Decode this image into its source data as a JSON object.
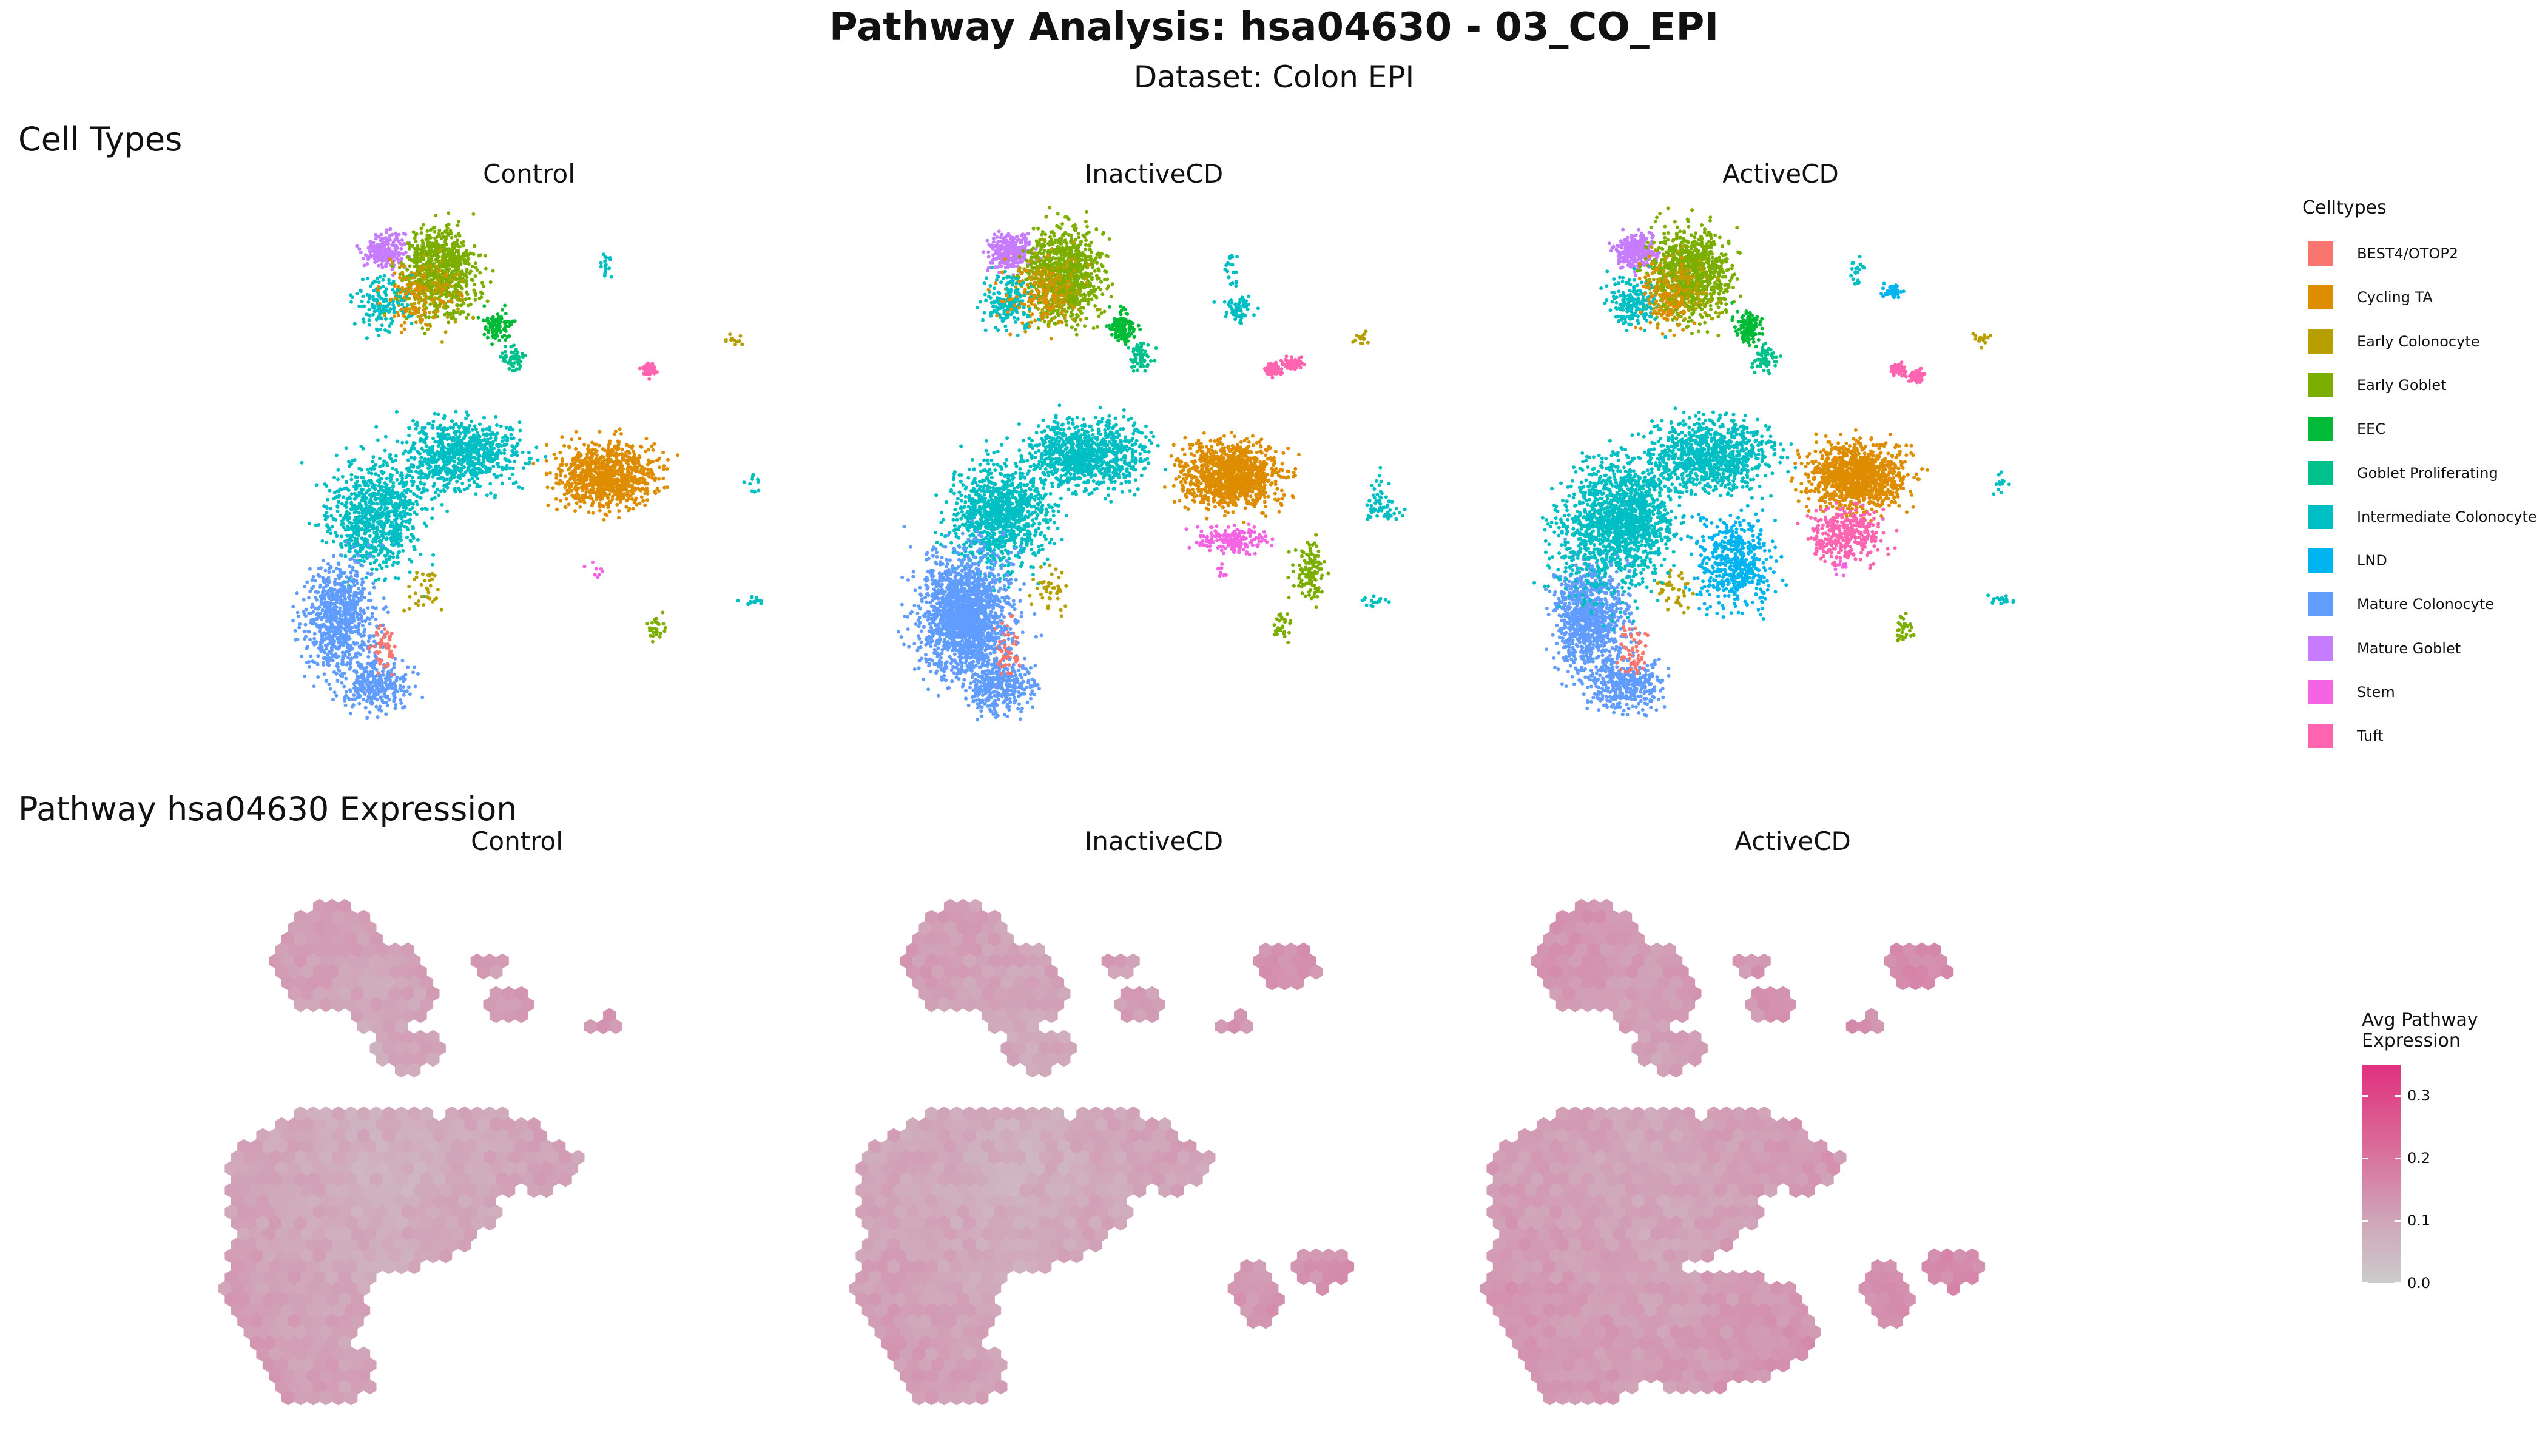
{
  "title": "Pathway Analysis: hsa04630 - 03_CO_EPI",
  "subtitle": "Dataset: Colon EPI",
  "sections": {
    "cell_types": "Cell Types",
    "expression": "Pathway hsa04630 Expression"
  },
  "conditions": [
    "Control",
    "InactiveCD",
    "ActiveCD"
  ],
  "legend": {
    "title": "Celltypes",
    "items": [
      {
        "label": "BEST4/OTOP2",
        "color": "#F8766D"
      },
      {
        "label": "Cycling TA",
        "color": "#DE8C00"
      },
      {
        "label": "Early Colonocyte",
        "color": "#B79F00"
      },
      {
        "label": "Early Goblet",
        "color": "#7CAE00"
      },
      {
        "label": "EEC",
        "color": "#00BA38"
      },
      {
        "label": "Goblet Proliferating",
        "color": "#00C08B"
      },
      {
        "label": "Intermediate Colonocyte",
        "color": "#00BFC4"
      },
      {
        "label": "LND",
        "color": "#00B4F0"
      },
      {
        "label": "Mature Colonocyte",
        "color": "#619CFF"
      },
      {
        "label": "Mature Goblet",
        "color": "#C77CFF"
      },
      {
        "label": "Stem",
        "color": "#F564E3"
      },
      {
        "label": "Tuft",
        "color": "#FF64B0"
      }
    ]
  },
  "colorbar": {
    "title_line1": "Avg Pathway",
    "title_line2": "Expression",
    "ticks": [
      "0.3",
      "0.2",
      "0.1",
      "0.0"
    ],
    "low_color": "#CCCCCC",
    "high_color": "#E0307E"
  },
  "chart_data": [
    {
      "type": "scatter",
      "title": "Cell Types",
      "facets": [
        "Control",
        "InactiveCD",
        "ActiveCD"
      ],
      "color_by": "Celltypes",
      "categories": [
        "BEST4/OTOP2",
        "Cycling TA",
        "Early Colonocyte",
        "Early Goblet",
        "EEC",
        "Goblet Proliferating",
        "Intermediate Colonocyte",
        "LND",
        "Mature Colonocyte",
        "Mature Goblet",
        "Stem",
        "Tuft"
      ],
      "axes": "none",
      "grid": false,
      "legend_position": "right"
    },
    {
      "type": "heatmap",
      "title": "Pathway hsa04630 Expression",
      "facets": [
        "Control",
        "InactiveCD",
        "ActiveCD"
      ],
      "binning": "hexagonal",
      "fill": "Avg Pathway Expression",
      "fill_range": [
        0.0,
        0.35
      ],
      "colorbar_ticks": [
        0.0,
        0.1,
        0.2,
        0.3
      ],
      "axes": "none",
      "grid": false,
      "legend_position": "right"
    }
  ]
}
